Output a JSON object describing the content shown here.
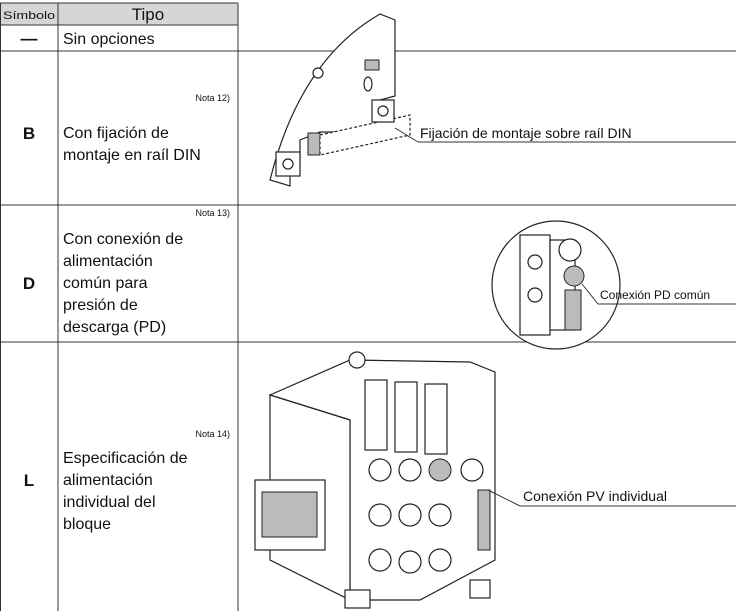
{
  "table": {
    "header": [
      "Símbolo",
      "Tipo"
    ],
    "rows": [
      {
        "symbol": "—",
        "type": [
          "Sin opciones"
        ]
      },
      {
        "symbol": "B",
        "note": "Nota 12)",
        "type": [
          "Con fijación de",
          "montaje en raíl DIN"
        ],
        "callout": "Fijación de montaje sobre raíl DIN"
      },
      {
        "symbol": "D",
        "note": "Nota 13)",
        "type": [
          "Con conexión de",
          "alimentación",
          "común para",
          "presión de",
          "descarga (PD)"
        ],
        "callout": "Conexión PD común"
      },
      {
        "symbol": "L",
        "note": "Nota 14)",
        "type": [
          "Especificación de",
          "alimentación",
          "individual del",
          "bloque"
        ],
        "callout": "Conexión PV individual"
      }
    ]
  }
}
